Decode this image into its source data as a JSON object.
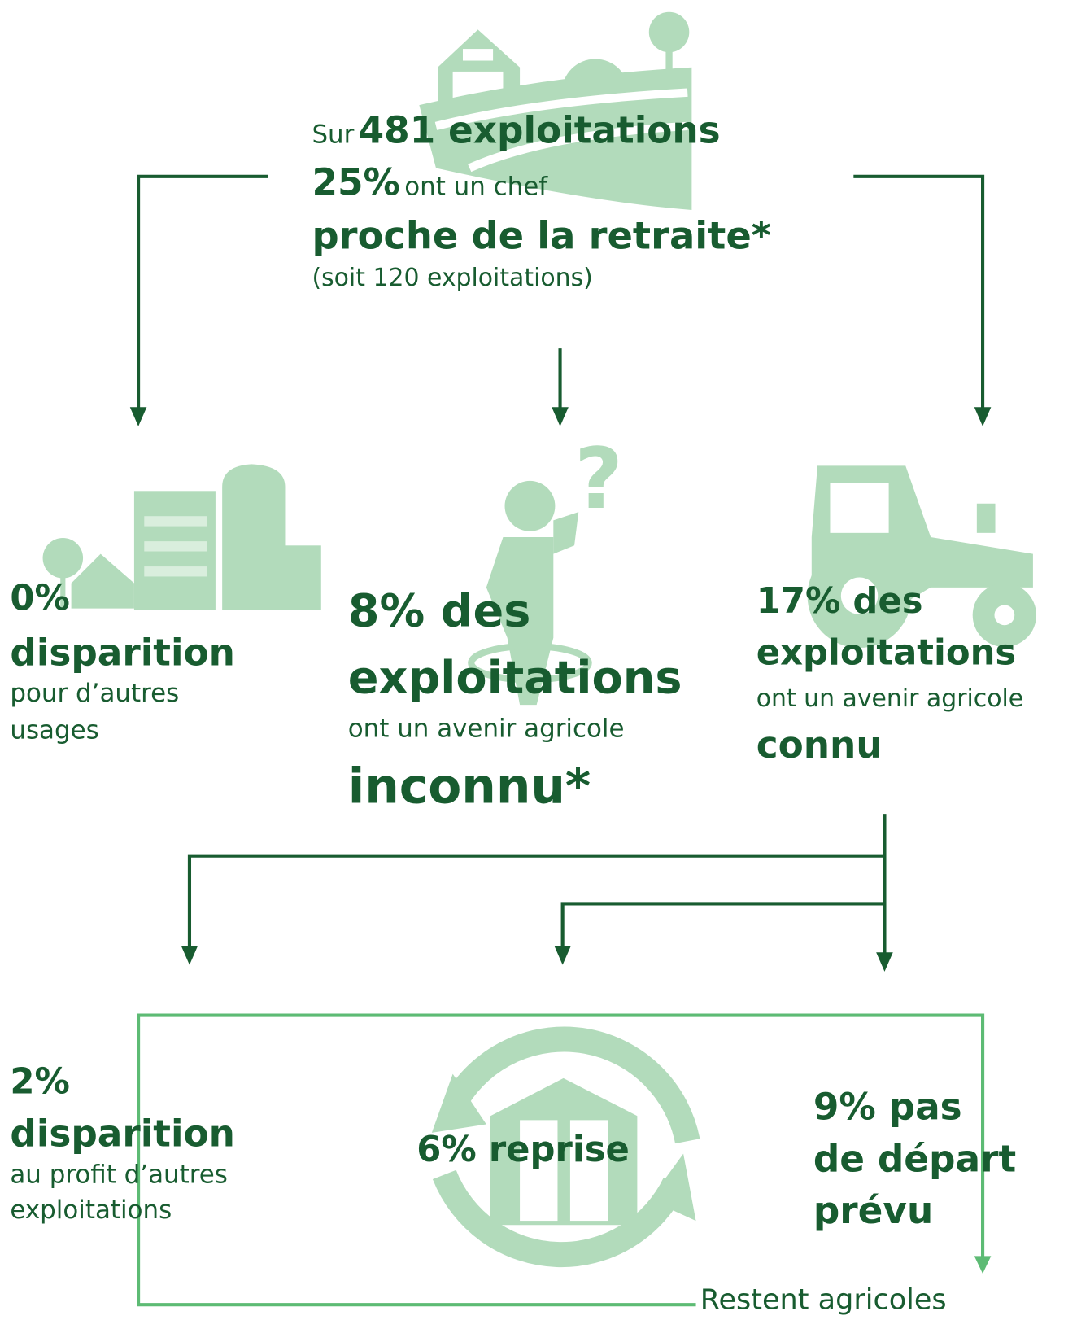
{
  "top": {
    "prefix": "Sur",
    "count": "481 exploitations",
    "percent": "25%",
    "middle": "ont un chef",
    "highlight": "proche de la retraite*",
    "note": "(soit 120 exploitations)"
  },
  "left": {
    "percent": "0%",
    "title": "disparition",
    "description": [
      "pour d’autres",
      "usages"
    ]
  },
  "center": {
    "headline": [
      "8% des",
      "exploitations"
    ],
    "description": "ont un avenir agricole",
    "highlight": "inconnu*"
  },
  "right": {
    "headline": [
      "17% des",
      "exploitations"
    ],
    "description": "ont un avenir agricole",
    "highlight": "connu"
  },
  "outcomes": {
    "left": {
      "percent": "2%",
      "title": "disparition",
      "description": [
        "au profit d’autres",
        "exploitations"
      ]
    },
    "center": {
      "headline": "6% reprise"
    },
    "right": {
      "headline": [
        "9% pas",
        "de départ",
        "prévu"
      ]
    }
  },
  "footer": "Restent agricoles"
}
